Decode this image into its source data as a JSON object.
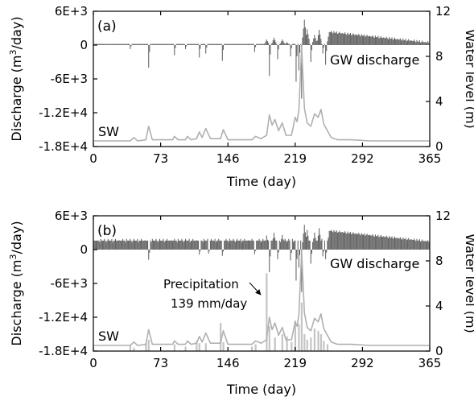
{
  "chart_data": [
    {
      "type": "line",
      "panel": "(a)",
      "xlabel": "Time (day)",
      "ylabel_left": "Discharge (m3/day)",
      "ylabel_left_parts": {
        "before": "Discharge (m",
        "sup": "3",
        "after": "/day)"
      },
      "ylabel_right": "Water level (m)",
      "xlim": [
        0,
        365
      ],
      "xticks": [
        0,
        73,
        146,
        219,
        292,
        365
      ],
      "xtick_labels": [
        "0",
        "73",
        "146",
        "219",
        "292",
        "365"
      ],
      "ylim_left": [
        -18000,
        6000
      ],
      "yticks_left": [
        6000,
        0,
        -6000,
        -12000,
        -18000
      ],
      "ytick_labels_left": [
        "6E+3",
        "0",
        "-6E+3",
        "-1.2E+4",
        "-1.8E+4"
      ],
      "ylim_right": [
        0,
        12
      ],
      "yticks_right": [
        12,
        8,
        4,
        0
      ],
      "ytick_labels_right": [
        "12",
        "8",
        "4",
        "0"
      ],
      "series": [
        {
          "name": "GW discharge",
          "axis": "left",
          "color": "#666666",
          "style": "bars",
          "baseline": 200,
          "events": [
            {
              "day": 40,
              "value": -700
            },
            {
              "day": 60,
              "value": -4000
            },
            {
              "day": 88,
              "value": -1800
            },
            {
              "day": 100,
              "value": -700
            },
            {
              "day": 115,
              "value": -2200
            },
            {
              "day": 122,
              "value": -1500
            },
            {
              "day": 140,
              "value": -2800
            },
            {
              "day": 175,
              "value": -1200
            },
            {
              "day": 188,
              "value": 1000
            },
            {
              "day": 191,
              "value": -5500
            },
            {
              "day": 196,
              "value": 1300
            },
            {
              "day": 200,
              "value": -2500
            },
            {
              "day": 205,
              "value": 1000
            },
            {
              "day": 210,
              "value": 500
            },
            {
              "day": 214,
              "value": -2000
            },
            {
              "day": 220,
              "value": -6500
            },
            {
              "day": 223,
              "value": -4500
            },
            {
              "day": 226,
              "value": -9500
            },
            {
              "day": 229,
              "value": 4500
            },
            {
              "day": 232,
              "value": 2800
            },
            {
              "day": 236,
              "value": -3000
            },
            {
              "day": 240,
              "value": 1800
            },
            {
              "day": 245,
              "value": 2700
            },
            {
              "day": 249,
              "value": -1500
            },
            {
              "day": 252,
              "value": -3500
            },
            {
              "day": 256,
              "value": 2300
            }
          ],
          "decay": {
            "start_day": 256,
            "start_value": 2300,
            "end_day": 365,
            "end_value": 400
          }
        },
        {
          "name": "SW",
          "axis": "right",
          "color": "#b0b0b0",
          "style": "line",
          "points": [
            [
              0,
              0.5
            ],
            [
              40,
              0.5
            ],
            [
              44,
              0.8
            ],
            [
              48,
              0.5
            ],
            [
              57,
              0.6
            ],
            [
              60,
              1.8
            ],
            [
              64,
              0.6
            ],
            [
              86,
              0.6
            ],
            [
              88,
              0.9
            ],
            [
              92,
              0.6
            ],
            [
              100,
              0.6
            ],
            [
              102,
              0.9
            ],
            [
              106,
              0.6
            ],
            [
              112,
              0.7
            ],
            [
              115,
              1.3
            ],
            [
              118,
              0.8
            ],
            [
              122,
              1.6
            ],
            [
              127,
              0.7
            ],
            [
              138,
              0.7
            ],
            [
              141,
              1.5
            ],
            [
              146,
              0.6
            ],
            [
              172,
              0.6
            ],
            [
              176,
              0.9
            ],
            [
              182,
              0.7
            ],
            [
              188,
              1.0
            ],
            [
              191,
              2.8
            ],
            [
              194,
              1.9
            ],
            [
              197,
              2.4
            ],
            [
              201,
              1.4
            ],
            [
              205,
              2.1
            ],
            [
              209,
              1.0
            ],
            [
              215,
              1.0
            ],
            [
              219,
              2.6
            ],
            [
              221,
              2.2
            ],
            [
              223,
              3.2
            ],
            [
              226,
              8.8
            ],
            [
              229,
              3.4
            ],
            [
              232,
              2.1
            ],
            [
              236,
              1.8
            ],
            [
              240,
              2.9
            ],
            [
              244,
              2.6
            ],
            [
              247,
              3.3
            ],
            [
              250,
              2.0
            ],
            [
              254,
              1.4
            ],
            [
              258,
              0.8
            ],
            [
              265,
              0.6
            ],
            [
              280,
              0.6
            ],
            [
              300,
              0.5
            ],
            [
              365,
              0.5
            ]
          ]
        }
      ]
    },
    {
      "type": "line",
      "panel": "(b)",
      "xlabel": "Time (day)",
      "ylabel_left": "Discharge (m3/day)",
      "ylabel_left_parts": {
        "before": "Discharge (m",
        "sup": "3",
        "after": "/day)"
      },
      "ylabel_right": "Water level (m)",
      "xlim": [
        0,
        365
      ],
      "xticks": [
        0,
        73,
        146,
        219,
        292,
        365
      ],
      "xtick_labels": [
        "0",
        "73",
        "146",
        "219",
        "292",
        "365"
      ],
      "ylim_left": [
        -18000,
        6000
      ],
      "yticks_left": [
        6000,
        0,
        -6000,
        -12000,
        -18000
      ],
      "ytick_labels_left": [
        "6E+3",
        "0",
        "-6E+3",
        "-1.2E+4",
        "-1.8E+4"
      ],
      "ylim_right": [
        0,
        12
      ],
      "yticks_right": [
        12,
        8,
        4,
        0
      ],
      "ytick_labels_right": [
        "12",
        "8",
        "4",
        "0"
      ],
      "annotation": {
        "lines": [
          "Precipitation",
          "139 mm/day"
        ],
        "arrow_day": 188,
        "arrow_level": 6.9
      },
      "series": [
        {
          "name": "GW discharge",
          "axis": "left",
          "color": "#666666",
          "style": "bars",
          "baseline": 1600,
          "events": [
            {
              "day": 60,
              "value": -1800
            },
            {
              "day": 115,
              "value": -900
            },
            {
              "day": 125,
              "value": -700
            },
            {
              "day": 140,
              "value": -1100
            },
            {
              "day": 175,
              "value": -800
            },
            {
              "day": 188,
              "value": 2500
            },
            {
              "day": 191,
              "value": -4000
            },
            {
              "day": 196,
              "value": 3000
            },
            {
              "day": 200,
              "value": -1700
            },
            {
              "day": 205,
              "value": 2600
            },
            {
              "day": 214,
              "value": -1900
            },
            {
              "day": 220,
              "value": -5500
            },
            {
              "day": 223,
              "value": -3200
            },
            {
              "day": 226,
              "value": -7500
            },
            {
              "day": 229,
              "value": 4400
            },
            {
              "day": 232,
              "value": 3500
            },
            {
              "day": 236,
              "value": -2500
            },
            {
              "day": 240,
              "value": 3000
            },
            {
              "day": 245,
              "value": 3800
            },
            {
              "day": 249,
              "value": -1200
            },
            {
              "day": 252,
              "value": -1700
            },
            {
              "day": 256,
              "value": 3300
            }
          ],
          "decay": {
            "start_day": 256,
            "start_value": 3300,
            "end_day": 365,
            "end_value": 1400
          }
        },
        {
          "name": "SW",
          "axis": "right",
          "color": "#b0b0b0",
          "style": "line",
          "points": [
            [
              0,
              0.5
            ],
            [
              40,
              0.5
            ],
            [
              44,
              0.8
            ],
            [
              48,
              0.5
            ],
            [
              57,
              0.6
            ],
            [
              60,
              1.9
            ],
            [
              64,
              0.6
            ],
            [
              86,
              0.6
            ],
            [
              88,
              0.9
            ],
            [
              92,
              0.6
            ],
            [
              100,
              0.6
            ],
            [
              102,
              0.9
            ],
            [
              106,
              0.6
            ],
            [
              112,
              0.7
            ],
            [
              115,
              1.3
            ],
            [
              118,
              0.8
            ],
            [
              122,
              1.6
            ],
            [
              127,
              0.7
            ],
            [
              138,
              0.7
            ],
            [
              141,
              1.8
            ],
            [
              146,
              0.6
            ],
            [
              172,
              0.6
            ],
            [
              176,
              0.9
            ],
            [
              182,
              0.7
            ],
            [
              188,
              1.0
            ],
            [
              191,
              3.0
            ],
            [
              194,
              1.9
            ],
            [
              197,
              2.5
            ],
            [
              201,
              1.4
            ],
            [
              205,
              2.1
            ],
            [
              209,
              1.0
            ],
            [
              215,
              1.0
            ],
            [
              219,
              2.6
            ],
            [
              221,
              2.2
            ],
            [
              223,
              3.2
            ],
            [
              226,
              8.8
            ],
            [
              229,
              3.4
            ],
            [
              232,
              2.1
            ],
            [
              236,
              1.8
            ],
            [
              240,
              2.9
            ],
            [
              244,
              2.6
            ],
            [
              247,
              3.3
            ],
            [
              250,
              2.0
            ],
            [
              254,
              1.4
            ],
            [
              258,
              0.8
            ],
            [
              265,
              0.6
            ],
            [
              280,
              0.6
            ],
            [
              300,
              0.5
            ],
            [
              365,
              0.5
            ]
          ]
        },
        {
          "name": "Precipitation",
          "axis": "right",
          "color": "#c4c4c4",
          "style": "bars",
          "bars": [
            [
              40,
              0.5
            ],
            [
              44,
              0.3
            ],
            [
              57,
              0.7
            ],
            [
              60,
              1.0
            ],
            [
              88,
              0.6
            ],
            [
              100,
              0.4
            ],
            [
              112,
              0.9
            ],
            [
              115,
              0.7
            ],
            [
              122,
              0.7
            ],
            [
              138,
              2.5
            ],
            [
              141,
              0.8
            ],
            [
              172,
              0.4
            ],
            [
              176,
              0.6
            ],
            [
              188,
              6.9
            ],
            [
              191,
              2.2
            ],
            [
              197,
              1.2
            ],
            [
              205,
              1.5
            ],
            [
              210,
              1.3
            ],
            [
              215,
              0.8
            ],
            [
              219,
              2.7
            ],
            [
              223,
              2.4
            ],
            [
              226,
              4.3
            ],
            [
              229,
              1.5
            ],
            [
              232,
              1.0
            ],
            [
              236,
              1.2
            ],
            [
              240,
              2.0
            ],
            [
              244,
              1.8
            ],
            [
              247,
              1.5
            ],
            [
              250,
              0.9
            ],
            [
              254,
              0.6
            ]
          ]
        }
      ]
    }
  ]
}
